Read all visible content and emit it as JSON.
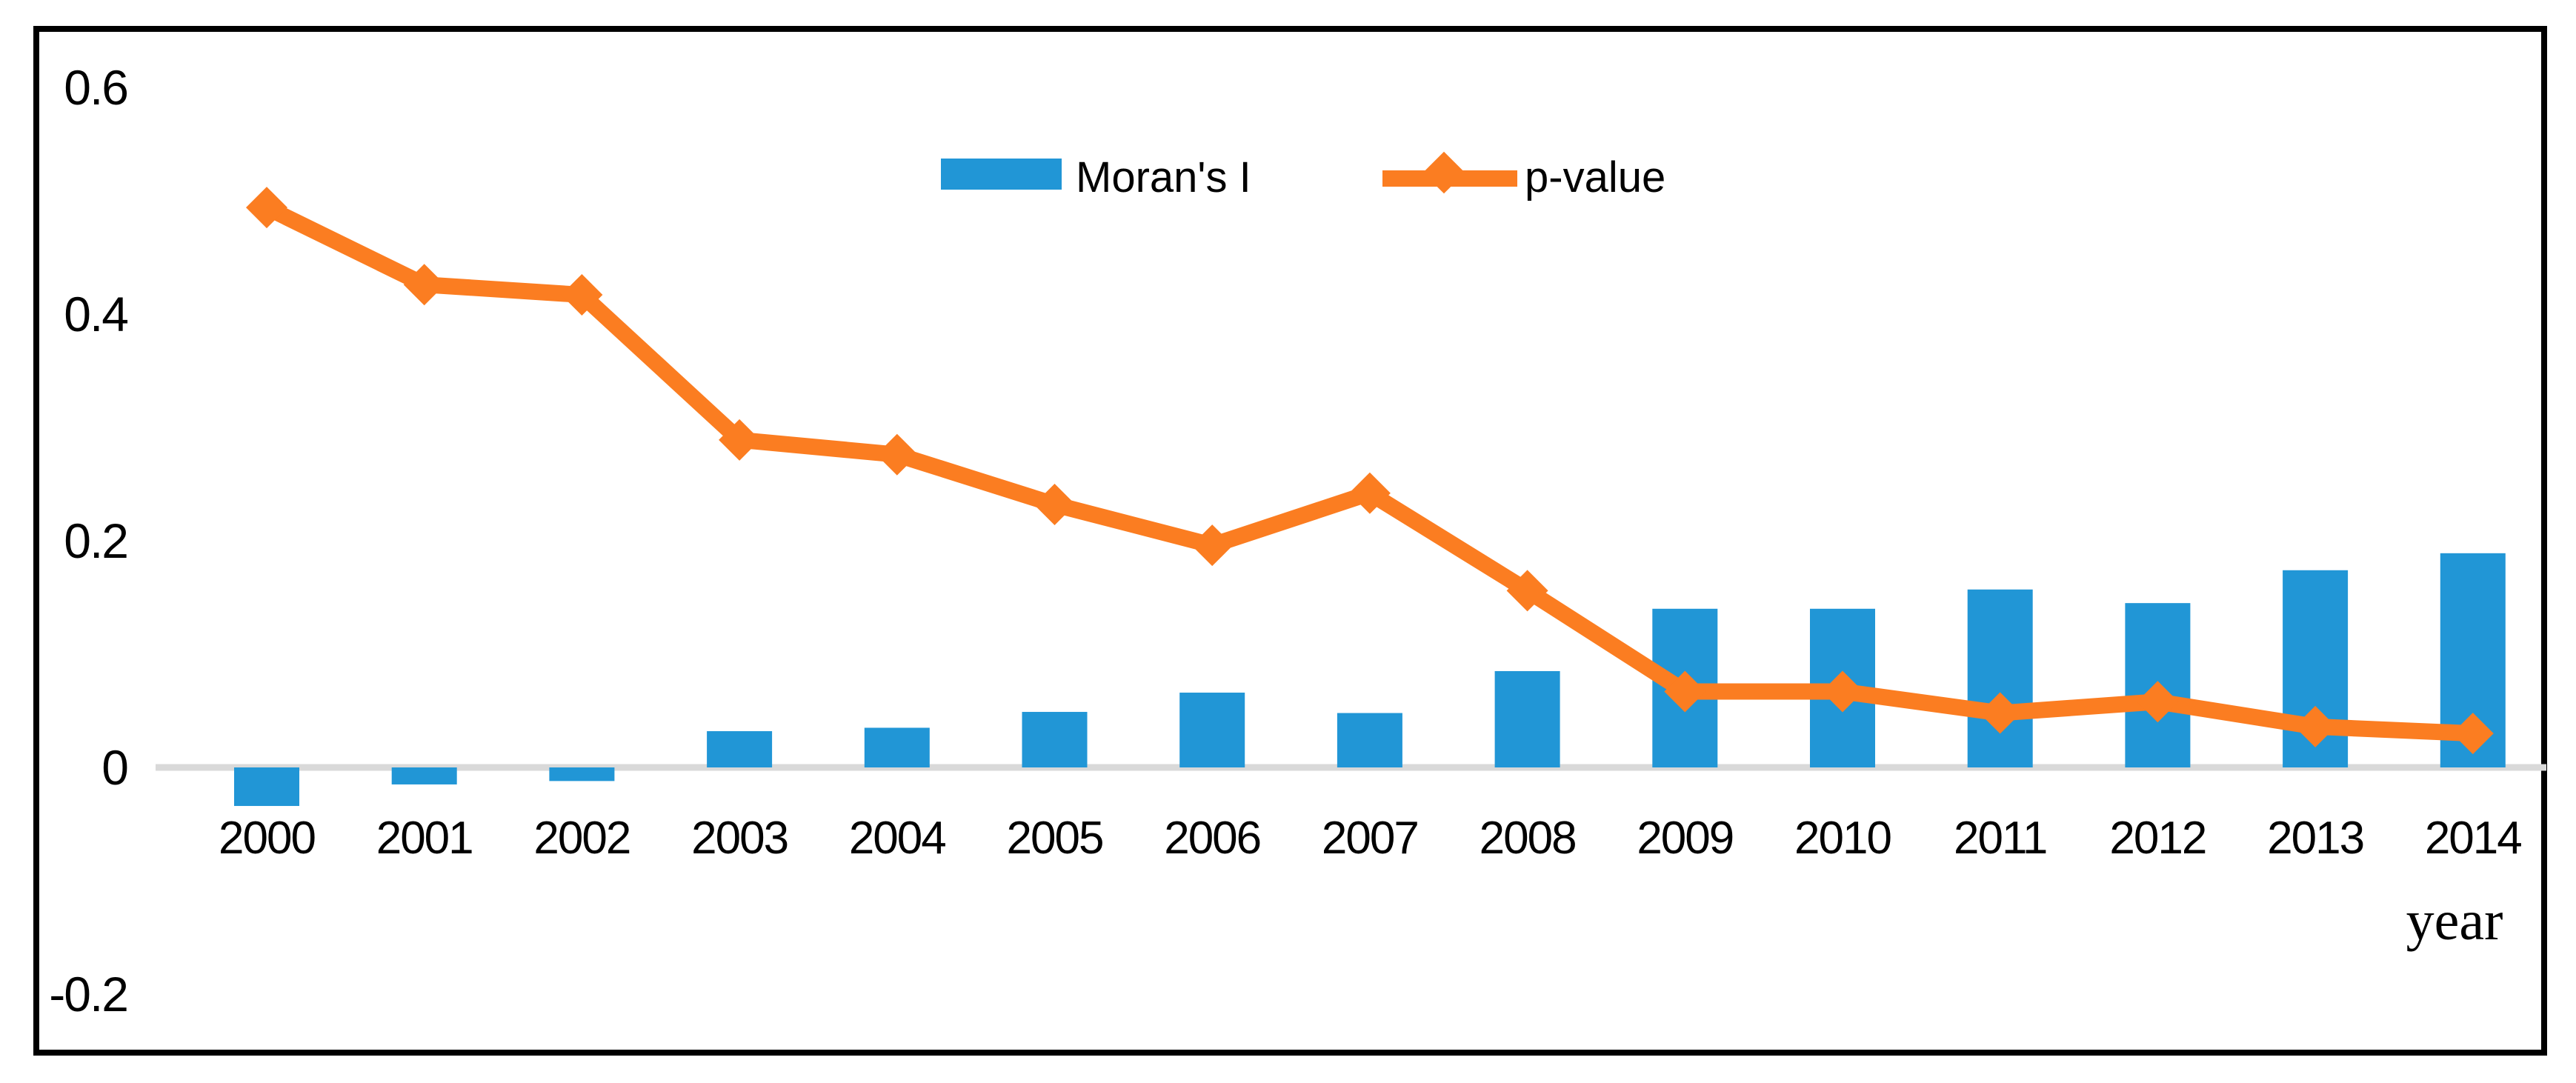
{
  "figure": {
    "background": "#ffffff",
    "border_color": "#000000"
  },
  "legend": {
    "position": "top-center",
    "items": [
      {
        "label": "Moran's I",
        "marker": "bar-swatch",
        "color": "#2196D6"
      },
      {
        "label": "p-value",
        "marker": "line-diamond",
        "color": "#FB7D21"
      }
    ]
  },
  "chart_data": {
    "type": "bar",
    "subtype": "combo-bar-line",
    "title": "",
    "xlabel": "year",
    "ylabel": "",
    "categories": [
      "2000",
      "2001",
      "2002",
      "2003",
      "2004",
      "2005",
      "2006",
      "2007",
      "2008",
      "2009",
      "2010",
      "2011",
      "2012",
      "2013",
      "2014"
    ],
    "series": [
      {
        "name": "Moran's I",
        "type": "bar",
        "color": "#2196D6",
        "values": [
          -0.034,
          -0.015,
          -0.012,
          0.032,
          0.035,
          0.049,
          0.066,
          0.048,
          0.085,
          0.14,
          0.14,
          0.157,
          0.145,
          0.174,
          0.189
        ]
      },
      {
        "name": "p-value",
        "type": "line",
        "marker": "diamond",
        "color": "#FB7D21",
        "values": [
          0.494,
          0.426,
          0.417,
          0.289,
          0.276,
          0.232,
          0.196,
          0.242,
          0.156,
          0.067,
          0.067,
          0.048,
          0.058,
          0.036,
          0.03
        ]
      }
    ],
    "y_ticks": [
      "0.6",
      "0.4",
      "0.2",
      "0",
      "-0.2"
    ],
    "y_tick_values": [
      0.6,
      0.4,
      0.2,
      0,
      -0.2
    ],
    "ylim": [
      -0.28,
      0.65
    ],
    "grid": "zero-line-only",
    "zero_line_color": "#D9D9D9",
    "legend_position": "top-center"
  }
}
